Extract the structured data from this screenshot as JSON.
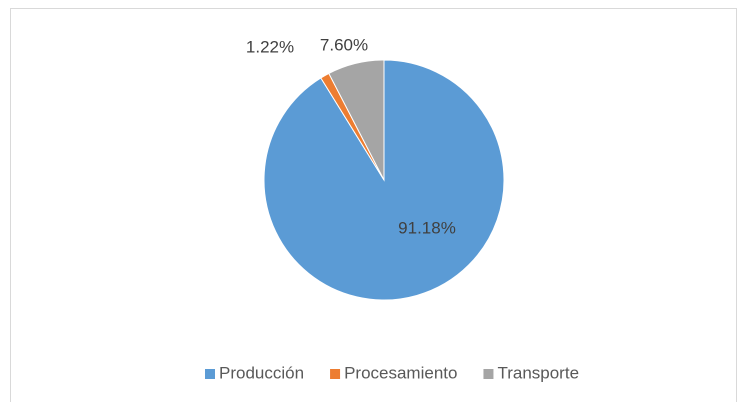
{
  "chart_data": {
    "type": "pie",
    "categories": [
      "Producción",
      "Procesamiento",
      "Transporte"
    ],
    "values": [
      91.18,
      1.22,
      7.6
    ],
    "value_labels": [
      "91.18%",
      "1.22%",
      "7.60%"
    ],
    "colors": [
      "#5b9bd5",
      "#ed7d31",
      "#a5a5a5"
    ],
    "legend": "bottom"
  }
}
